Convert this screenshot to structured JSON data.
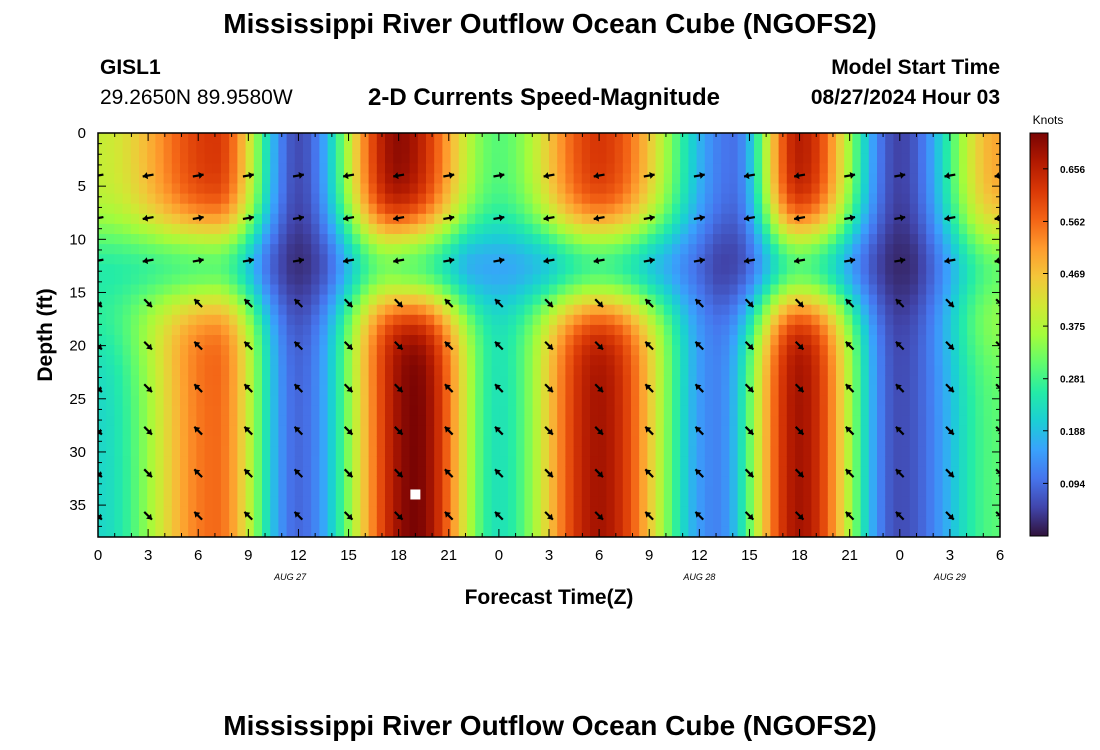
{
  "header": {
    "title": "Mississippi River Outflow Ocean Cube (NGOFS2)",
    "station_id": "GISL1",
    "station_coords": "29.2650N  89.9580W",
    "subtitle": "2-D Currents Speed-Magnitude",
    "model_start_label": "Model Start Time",
    "model_start_value": "08/27/2024 Hour 03"
  },
  "footer": {
    "title": "Mississippi River Outflow Ocean Cube (NGOFS2)"
  },
  "chart_data": {
    "type": "heatmap",
    "xlabel": "Forecast Time(Z)",
    "ylabel": "Depth (ft)",
    "x_hours_range": [
      0,
      54
    ],
    "ylim": [
      0,
      38
    ],
    "y_inverted": true,
    "x_tick_labels": [
      "0",
      "3",
      "6",
      "9",
      "12",
      "15",
      "18",
      "21",
      "0",
      "3",
      "6",
      "9",
      "12",
      "15",
      "18",
      "21",
      "0",
      "3",
      "6"
    ],
    "y_tick_labels": [
      "0",
      "5",
      "10",
      "15",
      "20",
      "25",
      "30",
      "35"
    ],
    "y_ticks": [
      0,
      5,
      10,
      15,
      20,
      25,
      30,
      35
    ],
    "date_labels": [
      {
        "text": "AUG 27",
        "hour": 11.5
      },
      {
        "text": "AUG 28",
        "hour": 36
      },
      {
        "text": "AUG 29",
        "hour": 51
      }
    ],
    "colorbar": {
      "label": "Knots",
      "min": 0.0,
      "max": 0.72,
      "tick_values": [
        0.094,
        0.188,
        0.281,
        0.375,
        0.469,
        0.562,
        0.656
      ],
      "tick_labels": [
        "0.094",
        "0.188",
        "0.281",
        "0.375",
        "0.469",
        "0.562",
        "0.656"
      ],
      "colormap": [
        "#30123b",
        "#4145ab",
        "#4675ed",
        "#39a2fc",
        "#1bcfd4",
        "#24eca6",
        "#61fc6c",
        "#a4fc3b",
        "#d1e834",
        "#f3c63a",
        "#fe9b2d",
        "#f36315",
        "#d93806",
        "#b11901",
        "#7a0403"
      ]
    },
    "surface_speed": [
      {
        "h": 0,
        "v": 0.4
      },
      {
        "h": 7,
        "v": 0.62
      },
      {
        "h": 12,
        "v": 0.06
      },
      {
        "h": 18,
        "v": 0.7
      },
      {
        "h": 24,
        "v": 0.3
      },
      {
        "h": 30,
        "v": 0.62
      },
      {
        "h": 38,
        "v": 0.1
      },
      {
        "h": 42,
        "v": 0.66
      },
      {
        "h": 48,
        "v": 0.05
      },
      {
        "h": 54,
        "v": 0.5
      }
    ],
    "bottom_speed": [
      {
        "h": 0,
        "v": 0.22
      },
      {
        "h": 7,
        "v": 0.56
      },
      {
        "h": 12,
        "v": 0.09
      },
      {
        "h": 19,
        "v": 0.72
      },
      {
        "h": 24,
        "v": 0.24
      },
      {
        "h": 30,
        "v": 0.68
      },
      {
        "h": 37,
        "v": 0.12
      },
      {
        "h": 42,
        "v": 0.68
      },
      {
        "h": 48,
        "v": 0.06
      },
      {
        "h": 54,
        "v": 0.3
      }
    ],
    "marker": {
      "hour": 19,
      "depth": 34,
      "color": "#ffffff"
    }
  }
}
